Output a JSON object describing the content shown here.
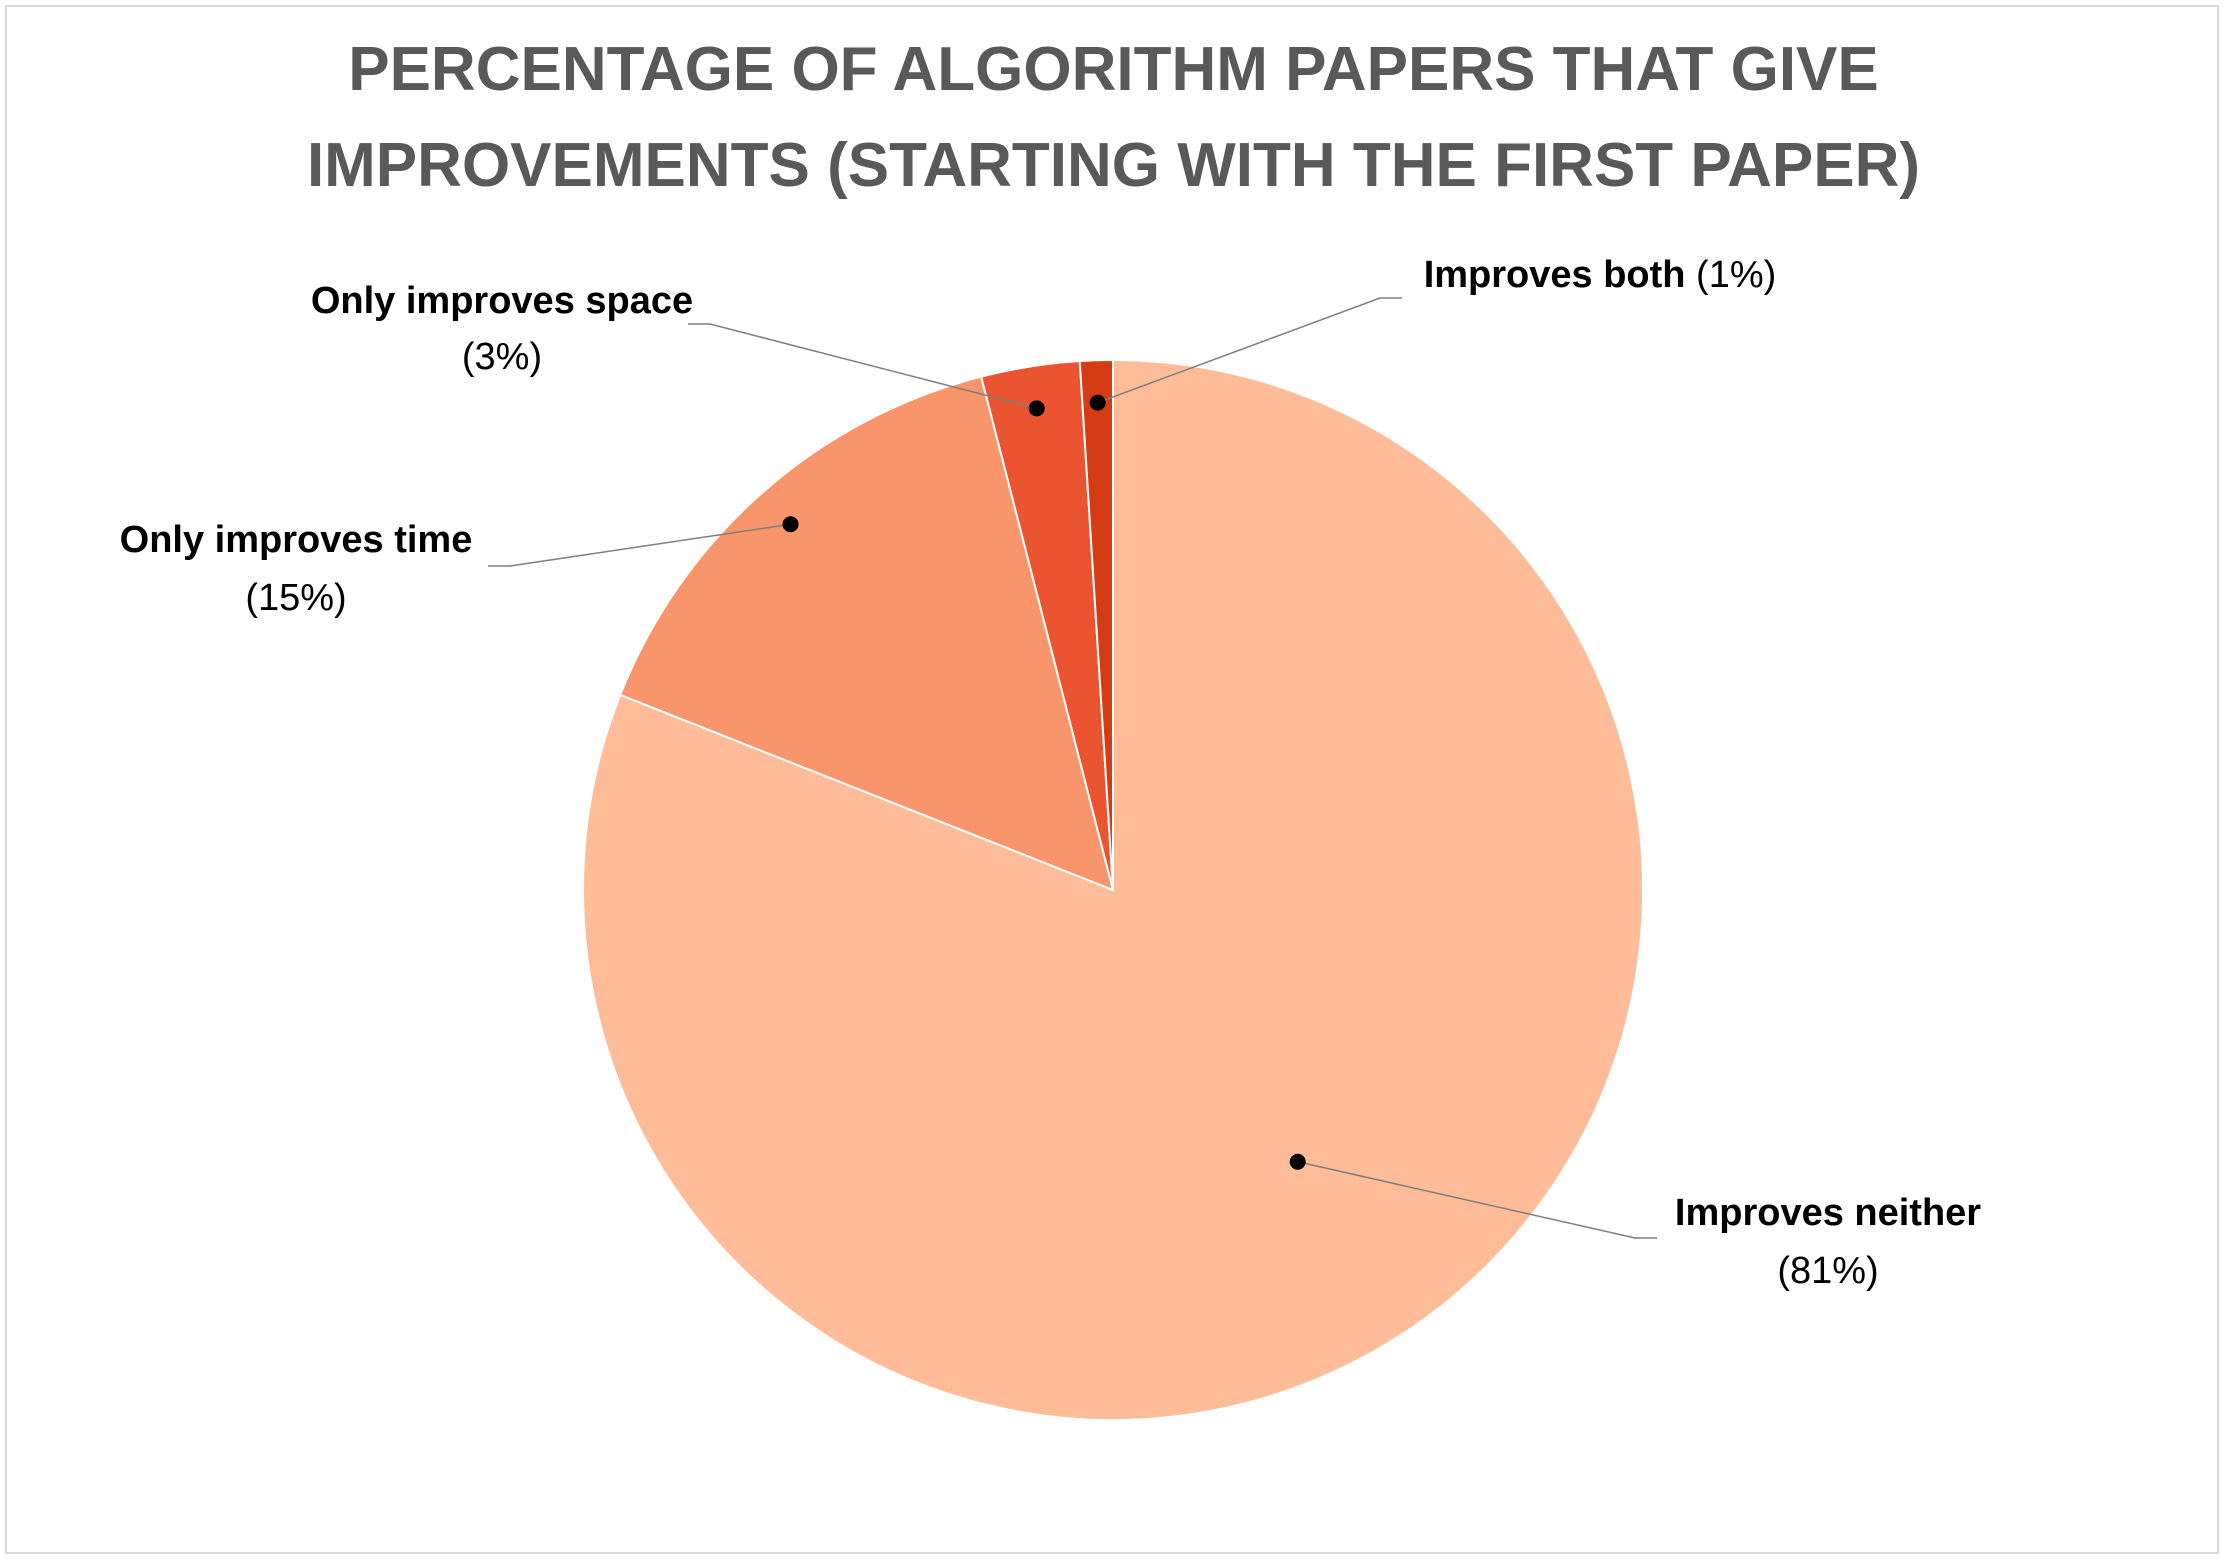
{
  "chart_data": {
    "type": "pie",
    "title_lines": [
      "PERCENTAGE OF ALGORITHM PAPERS THAT GIVE",
      "IMPROVEMENTS (STARTING WITH THE FIRST PAPER)"
    ],
    "start_angle_deg": 0,
    "direction": "clockwise",
    "slices": [
      {
        "name": "Improves neither",
        "value": 81,
        "label": "(81%)",
        "color": "#ffbc99"
      },
      {
        "name": "Only improves time",
        "value": 15,
        "label": "(15%)",
        "color": "#f8956b"
      },
      {
        "name": "Only improves space",
        "value": 3,
        "label": "(3%)",
        "color": "#ea5431"
      },
      {
        "name": "Improves both",
        "value": 1,
        "label": "(1%)",
        "color": "#d63c14"
      }
    ],
    "data_labels": "outside with leader lines",
    "legend": "none"
  }
}
